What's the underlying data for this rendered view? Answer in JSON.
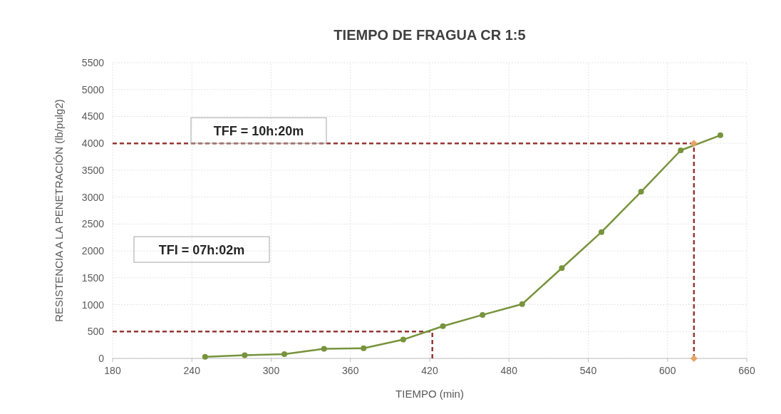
{
  "chart_data": {
    "type": "line",
    "title": "TIEMPO DE FRAGUA CR 1:5",
    "xlabel": "TIEMPO (min)",
    "ylabel": "RESISTENCIA A LA PENETRACIÓN (lb/pulg2)",
    "x": [
      250,
      280,
      310,
      340,
      370,
      400,
      430,
      460,
      490,
      520,
      550,
      580,
      610,
      640
    ],
    "series": [
      {
        "color": "#77933c",
        "values": [
          30,
          60,
          80,
          180,
          190,
          350,
          600,
          810,
          1010,
          1680,
          2350,
          3100,
          3870,
          4150
        ],
        "marker": "circle"
      },
      {
        "type": "scatter",
        "x": [
          620,
          620
        ],
        "color": "#e6a36a",
        "values": [
          4000,
          0
        ],
        "marker": "diamond"
      }
    ],
    "xlim": [
      180,
      660
    ],
    "xticks": [
      180,
      240,
      300,
      360,
      420,
      480,
      540,
      600,
      660
    ],
    "ylim": [
      0,
      5500
    ],
    "yticks": [
      0,
      500,
      1000,
      1500,
      2000,
      2500,
      3000,
      3500,
      4000,
      4500,
      5000,
      5500
    ],
    "grid": true,
    "annotations": [
      "TFF = 10h:20m",
      "TFI = 07h:02m"
    ],
    "ref_lines": [
      {
        "axis": "y",
        "value": 4000,
        "color": "#953735",
        "line_style": "dashed"
      },
      {
        "axis": "x",
        "value": 620,
        "color": "#953735",
        "line_style": "dashed"
      },
      {
        "axis": "y",
        "value": 500,
        "color": "#953735",
        "line_style": "dashed"
      },
      {
        "axis": "x",
        "value": 422,
        "color": "#953735",
        "line_style": "dashed"
      }
    ]
  }
}
